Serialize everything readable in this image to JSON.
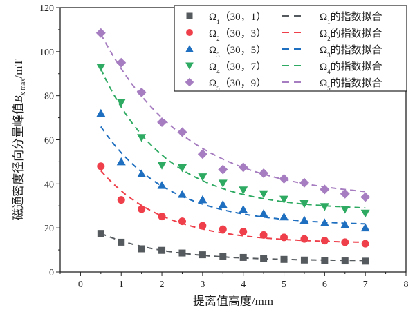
{
  "chart_data": {
    "type": "scatter",
    "xlabel": "提离值高度/mm",
    "ylabel": {
      "prefix": "磁通密度径向分量峰值",
      "symbol": "B",
      "sub": "x max",
      "unit": "/mT"
    },
    "xlim": [
      -0.5,
      8
    ],
    "ylim": [
      0,
      120
    ],
    "xticks": [
      0,
      1,
      2,
      3,
      4,
      5,
      6,
      7,
      8
    ],
    "yticks": [
      0,
      20,
      40,
      60,
      80,
      100,
      120
    ],
    "grid": false,
    "legend_position": "top-right",
    "x": [
      0.5,
      1,
      1.5,
      2,
      2.5,
      3,
      3.5,
      4,
      4.5,
      5,
      5.5,
      6,
      6.5,
      7
    ],
    "series": [
      {
        "name": "Ω1",
        "sub": "1",
        "params": "（30，1）",
        "fit_label": "的指数拟合",
        "color": "#555a5e",
        "marker": "square",
        "values": [
          17.5,
          13.5,
          10.5,
          9.8,
          8.6,
          7.8,
          7.2,
          6.6,
          6.1,
          5.7,
          5.4,
          5.1,
          5.0,
          4.9
        ],
        "fit": {
          "A": 17.2,
          "t": 1.57,
          "y0": 5.0
        }
      },
      {
        "name": "Ω2",
        "sub": "2",
        "params": "（30，3）",
        "fit_label": "的指数拟合",
        "color": "#ee3f4a",
        "marker": "circle",
        "values": [
          48,
          32.7,
          28.5,
          25.2,
          23,
          21,
          19.4,
          18.3,
          16.8,
          15.7,
          15,
          14.2,
          13.5,
          12.8
        ],
        "fit": {
          "A": 45.6,
          "t": 1.54,
          "y0": 13.0
        }
      },
      {
        "name": "Ω3",
        "sub": "3",
        "params": "（30，5）",
        "fit_label": "的指数拟合",
        "color": "#1f6fc0",
        "marker": "triangle-up",
        "values": [
          72,
          50,
          44.5,
          39.3,
          35.2,
          32.8,
          30.6,
          28.3,
          26.5,
          25,
          23.5,
          22.3,
          21.4,
          20
        ],
        "fit": {
          "A": 61,
          "t": 1.64,
          "y0": 21.0
        }
      },
      {
        "name": "Ω4",
        "sub": "4",
        "params": "（30，7）",
        "fit_label": "的指数拟合",
        "color": "#2eaa62",
        "marker": "triangle-down",
        "values": [
          93,
          77,
          61,
          48.5,
          47.3,
          43.2,
          40.3,
          37.2,
          35.5,
          33,
          31,
          29.7,
          28.5,
          26.7
        ],
        "fit": {
          "A": 87.6,
          "t": 1.6,
          "y0": 28.0
        }
      },
      {
        "name": "Ω5",
        "sub": "5",
        "params": "（30，9）",
        "fit_label": "的指数拟合",
        "color": "#a67dc0",
        "marker": "diamond",
        "values": [
          108.5,
          95,
          81.5,
          68,
          63.5,
          53.5,
          46.5,
          47.5,
          44.8,
          42.3,
          40.5,
          37.5,
          35.5,
          34
        ],
        "fit": {
          "A": 95,
          "t": 2.12,
          "y0": 33.0
        }
      }
    ]
  }
}
